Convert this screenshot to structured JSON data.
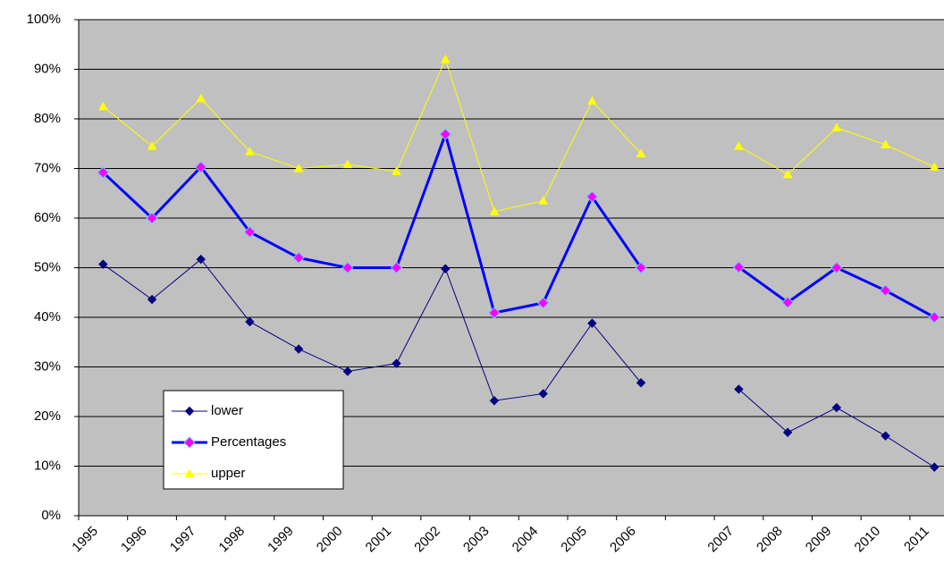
{
  "chart_data": {
    "type": "line",
    "categories": [
      "1995",
      "1996",
      "1997",
      "1998",
      "1999",
      "2000",
      "2001",
      "2002",
      "2003",
      "2004",
      "2005",
      "2006",
      null,
      "2007",
      "2008",
      "2009",
      "2010",
      "2011"
    ],
    "series": [
      {
        "name": "lower",
        "color": "#000080",
        "marker": "diamond",
        "marker_color": "#000080",
        "width": 1,
        "values": [
          50.7,
          43.6,
          51.7,
          39.1,
          33.6,
          29.1,
          30.7,
          49.8,
          23.2,
          24.6,
          38.8,
          26.8,
          null,
          25.5,
          16.8,
          21.8,
          16.1,
          9.8
        ]
      },
      {
        "name": "Percentages",
        "color": "#0000ff",
        "marker": "diamond",
        "marker_color": "#ff00ff",
        "width": 3,
        "values": [
          69.2,
          60,
          70.3,
          57.2,
          52,
          50,
          50,
          76.9,
          40.9,
          42.9,
          64.3,
          50,
          null,
          50.1,
          43,
          50,
          45.4,
          40
        ]
      },
      {
        "name": "upper",
        "color": "#ffff00",
        "marker": "triangle",
        "marker_color": "#ffff00",
        "width": 1,
        "values": [
          82.5,
          74.5,
          84.1,
          73.4,
          70,
          70.8,
          69.4,
          92,
          61.3,
          63.5,
          83.6,
          73,
          null,
          74.5,
          68.8,
          78.2,
          74.8,
          70.3
        ]
      }
    ],
    "ylim": [
      0,
      100
    ],
    "yticks": [
      {
        "value": 0,
        "label": "0%"
      },
      {
        "value": 10,
        "label": "10%"
      },
      {
        "value": 20,
        "label": "20%"
      },
      {
        "value": 30,
        "label": "30%"
      },
      {
        "value": 40,
        "label": "40%"
      },
      {
        "value": 50,
        "label": "50%"
      },
      {
        "value": 60,
        "label": "60%"
      },
      {
        "value": 70,
        "label": "70%"
      },
      {
        "value": 80,
        "label": "80%"
      },
      {
        "value": 90,
        "label": "90%"
      },
      {
        "value": 100,
        "label": "100%"
      }
    ],
    "grid": true,
    "plot_background": "#c0c0c0",
    "legend": "lower left"
  }
}
